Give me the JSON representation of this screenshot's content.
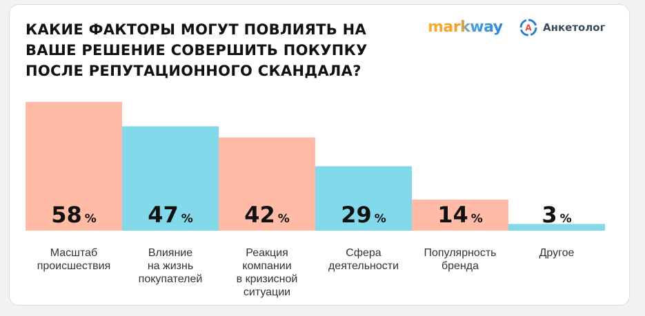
{
  "header": {
    "title": "КАКИЕ ФАКТОРЫ МОГУТ ПОВЛИЯТЬ НА ВАШЕ РЕШЕНИЕ СОВЕРШИТЬ ПОКУПКУ ПОСЛЕ РЕПУТАЦИОННОГО СКАНДАЛА?",
    "logos": {
      "markway": "markway",
      "anketolog": "Анкетолог",
      "anketolog_icon_letter": "A"
    }
  },
  "colors": {
    "salmon": "#ffbba5",
    "cyan": "#82d9ea"
  },
  "chart_data": {
    "type": "bar",
    "categories": [
      [
        "Масштаб",
        "происшествия"
      ],
      [
        "Влияние",
        "на жизнь",
        "покупателей"
      ],
      [
        "Реакция",
        "компании",
        "в кризисной",
        "ситуации"
      ],
      [
        "Сфера",
        "деятельности"
      ],
      [
        "Популярность",
        "бренда"
      ],
      [
        "Другое"
      ]
    ],
    "values": [
      58,
      47,
      42,
      29,
      14,
      3
    ],
    "value_suffix": "%",
    "bar_colors": [
      "#ffbba5",
      "#82d9ea",
      "#ffbba5",
      "#82d9ea",
      "#ffbba5",
      "#82d9ea"
    ],
    "ylim": [
      0,
      58
    ],
    "grid": false,
    "legend": "none"
  }
}
